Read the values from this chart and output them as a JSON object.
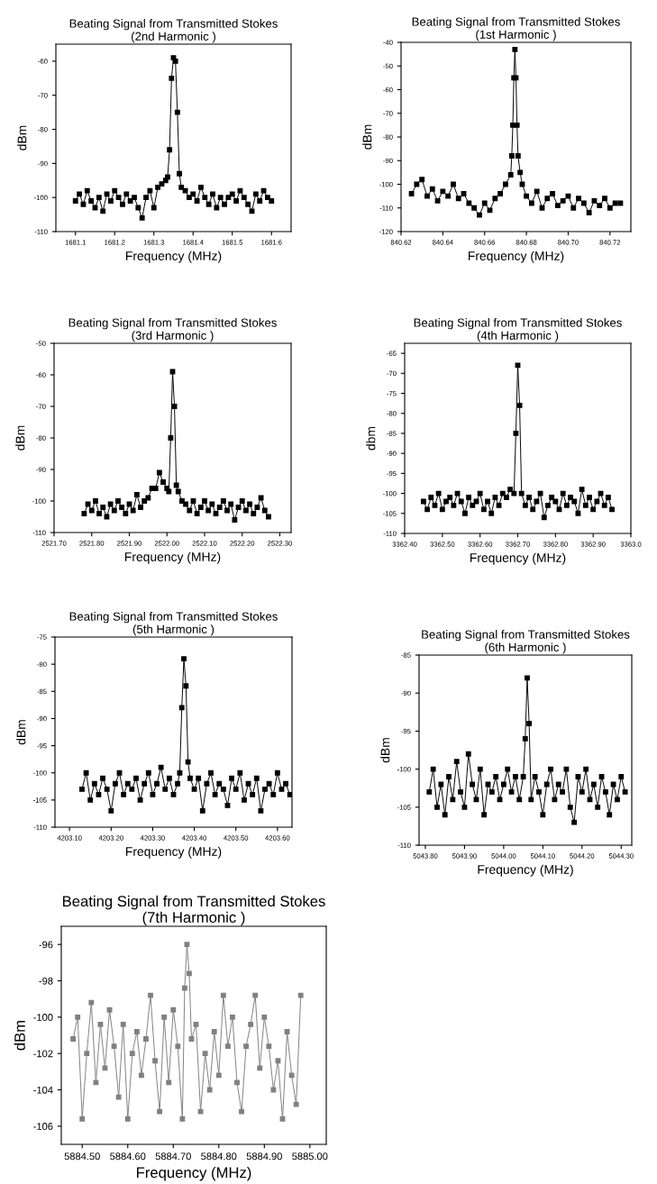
{
  "chart_data": [
    {
      "type": "line",
      "title": "Beating Signal from Transmitted Stokes",
      "subtitle": "(2nd Harmonic )",
      "xlabel": "Frequency (MHz)",
      "ylabel": "dBm",
      "marker": "square",
      "line_style": "solid",
      "xlim": [
        1681.05,
        1681.65
      ],
      "xticks": [
        1681.1,
        1681.2,
        1681.3,
        1681.4,
        1681.5,
        1681.6
      ],
      "ylim": [
        -110,
        -55
      ],
      "yticks": [
        -110,
        -100,
        -90,
        -80,
        -70,
        -60
      ],
      "series": [
        {
          "color": "#000000",
          "x": [
            1681.1,
            1681.11,
            1681.12,
            1681.13,
            1681.14,
            1681.15,
            1681.16,
            1681.17,
            1681.18,
            1681.19,
            1681.2,
            1681.21,
            1681.22,
            1681.23,
            1681.24,
            1681.25,
            1681.26,
            1681.27,
            1681.28,
            1681.29,
            1681.3,
            1681.31,
            1681.32,
            1681.33,
            1681.335,
            1681.34,
            1681.345,
            1681.35,
            1681.355,
            1681.36,
            1681.365,
            1681.37,
            1681.38,
            1681.39,
            1681.4,
            1681.41,
            1681.42,
            1681.43,
            1681.44,
            1681.45,
            1681.46,
            1681.47,
            1681.48,
            1681.49,
            1681.5,
            1681.51,
            1681.52,
            1681.53,
            1681.54,
            1681.55,
            1681.56,
            1681.57,
            1681.58,
            1681.59,
            1681.6
          ],
          "values": [
            -101,
            -99,
            -102,
            -98,
            -101,
            -103,
            -100,
            -104,
            -99,
            -101,
            -98,
            -100,
            -102,
            -99,
            -101,
            -100,
            -103,
            -106,
            -100,
            -98,
            -103,
            -97,
            -96,
            -95,
            -94,
            -86,
            -65,
            -59,
            -60,
            -75,
            -93,
            -97,
            -98,
            -100,
            -99,
            -101,
            -97,
            -100,
            -102,
            -99,
            -103,
            -100,
            -102,
            -100,
            -99,
            -101,
            -98,
            -100,
            -102,
            -104,
            -99,
            -101,
            -98,
            -100,
            -101
          ]
        }
      ]
    },
    {
      "type": "line",
      "title": "Beating Signal from Transmitted Stokes",
      "subtitle": "(1st Harmonic )",
      "xlabel": "Frequency (MHz)",
      "ylabel": "dBm",
      "marker": "square",
      "line_style": "solid",
      "xlim": [
        840.62,
        840.73
      ],
      "xticks": [
        {
          "value": 840.62,
          "label": "840.62"
        },
        {
          "value": 840.64,
          "label": "840.64"
        },
        {
          "value": 840.66,
          "label": "840.66"
        },
        {
          "value": 840.68,
          "label": "840.68"
        },
        {
          "value": 840.7,
          "label": "840.70"
        },
        {
          "value": 840.72,
          "label": "840.72"
        }
      ],
      "ylim": [
        -120,
        -40
      ],
      "yticks": [
        -120,
        -110,
        -100,
        -90,
        -80,
        -70,
        -60,
        -50,
        -40
      ],
      "series": [
        {
          "color": "#000000",
          "x": [
            840.625,
            840.6275,
            840.63,
            840.6325,
            840.635,
            840.6375,
            840.64,
            840.6425,
            840.645,
            840.6475,
            840.65,
            840.6525,
            840.655,
            840.6575,
            840.66,
            840.6625,
            840.665,
            840.6675,
            840.67,
            840.6725,
            840.673,
            840.6735,
            840.674,
            840.6745,
            840.675,
            840.6755,
            840.676,
            840.677,
            840.678,
            840.68,
            840.6825,
            840.685,
            840.6875,
            840.69,
            840.6925,
            840.695,
            840.6975,
            840.7,
            840.7025,
            840.705,
            840.7075,
            840.71,
            840.7125,
            840.715,
            840.7175,
            840.72,
            840.7225,
            840.725
          ],
          "values": [
            -104,
            -100,
            -98,
            -105,
            -102,
            -107,
            -103,
            -105,
            -100,
            -106,
            -104,
            -108,
            -110,
            -113,
            -108,
            -111,
            -106,
            -104,
            -100,
            -96,
            -88,
            -75,
            -55,
            -43,
            -55,
            -75,
            -88,
            -95,
            -100,
            -105,
            -108,
            -103,
            -110,
            -106,
            -104,
            -109,
            -107,
            -105,
            -110,
            -106,
            -108,
            -112,
            -107,
            -109,
            -106,
            -110,
            -108,
            -108
          ]
        }
      ]
    },
    {
      "type": "line",
      "title": "Beating Signal from Transmitted Stokes",
      "subtitle": "(3rd Harmonic )",
      "xlabel": "Frequency (MHz)",
      "ylabel": "dBm",
      "marker": "square",
      "line_style": "solid",
      "xlim": [
        2521.7,
        2522.33
      ],
      "xticks": [
        {
          "value": 2521.7,
          "label": "2521.70"
        },
        {
          "value": 2521.8,
          "label": "2521.80"
        },
        {
          "value": 2521.9,
          "label": "2521.90"
        },
        {
          "value": 2522.0,
          "label": "2522.00"
        },
        {
          "value": 2522.1,
          "label": "2522.10"
        },
        {
          "value": 2522.2,
          "label": "2522.20"
        },
        {
          "value": 2522.3,
          "label": "2522.30"
        }
      ],
      "ylim": [
        -110,
        -50
      ],
      "yticks": [
        -110,
        -100,
        -90,
        -80,
        -70,
        -60,
        -50
      ],
      "series": [
        {
          "color": "#000000",
          "x": [
            2521.78,
            2521.79,
            2521.8,
            2521.81,
            2521.82,
            2521.83,
            2521.84,
            2521.85,
            2521.86,
            2521.87,
            2521.88,
            2521.89,
            2521.9,
            2521.91,
            2521.92,
            2521.93,
            2521.94,
            2521.95,
            2521.96,
            2521.97,
            2521.98,
            2521.99,
            2522.0,
            2522.005,
            2522.01,
            2522.015,
            2522.02,
            2522.025,
            2522.03,
            2522.04,
            2522.05,
            2522.06,
            2522.07,
            2522.08,
            2522.09,
            2522.1,
            2522.11,
            2522.12,
            2522.13,
            2522.14,
            2522.15,
            2522.16,
            2522.17,
            2522.18,
            2522.19,
            2522.2,
            2522.21,
            2522.22,
            2522.23,
            2522.24,
            2522.25,
            2522.26,
            2522.27
          ],
          "values": [
            -104,
            -101,
            -103,
            -100,
            -104,
            -102,
            -105,
            -101,
            -103,
            -100,
            -102,
            -104,
            -101,
            -103,
            -98,
            -102,
            -100,
            -99,
            -96,
            -96,
            -91,
            -94,
            -96,
            -97,
            -80,
            -59,
            -70,
            -95,
            -97,
            -100,
            -101,
            -103,
            -100,
            -104,
            -102,
            -100,
            -103,
            -101,
            -104,
            -102,
            -100,
            -103,
            -101,
            -106,
            -102,
            -100,
            -103,
            -101,
            -104,
            -102,
            -99,
            -103,
            -105
          ]
        }
      ]
    },
    {
      "type": "line",
      "title": "Beating Signal from Transmitted Stokes",
      "subtitle": "(4th Harmonic )",
      "xlabel": "Frequency (MHz)",
      "ylabel": "dbm",
      "marker": "square",
      "line_style": "solid",
      "xlim": [
        3362.4,
        3363.0
      ],
      "xticks": [
        {
          "value": 3362.4,
          "label": "3362.40"
        },
        {
          "value": 3362.5,
          "label": "3362.50"
        },
        {
          "value": 3362.6,
          "label": "3362.60"
        },
        {
          "value": 3362.7,
          "label": "3362.70"
        },
        {
          "value": 3362.8,
          "label": "3362.80"
        },
        {
          "value": 3362.9,
          "label": "3362.90"
        },
        {
          "value": 3363.0,
          "label": "3363.0"
        }
      ],
      "ylim": [
        -110,
        -62.5
      ],
      "yticks": [
        -110,
        -105,
        -100,
        -95,
        -90,
        -85,
        -80,
        -75,
        -70,
        -65
      ],
      "series": [
        {
          "color": "#000000",
          "x": [
            3362.45,
            3362.46,
            3362.47,
            3362.48,
            3362.49,
            3362.5,
            3362.51,
            3362.52,
            3362.53,
            3362.54,
            3362.55,
            3362.56,
            3362.57,
            3362.58,
            3362.59,
            3362.6,
            3362.61,
            3362.62,
            3362.63,
            3362.64,
            3362.65,
            3362.66,
            3362.67,
            3362.68,
            3362.69,
            3362.695,
            3362.7,
            3362.705,
            3362.71,
            3362.72,
            3362.73,
            3362.74,
            3362.75,
            3362.76,
            3362.77,
            3362.78,
            3362.79,
            3362.8,
            3362.81,
            3362.82,
            3362.83,
            3362.84,
            3362.85,
            3362.86,
            3362.87,
            3362.88,
            3362.89,
            3362.9,
            3362.91,
            3362.92,
            3362.93,
            3362.94,
            3362.95
          ],
          "values": [
            -102,
            -104,
            -101,
            -103,
            -100,
            -104,
            -102,
            -101,
            -103,
            -100,
            -102,
            -105,
            -101,
            -103,
            -102,
            -100,
            -104,
            -102,
            -105,
            -101,
            -103,
            -100,
            -101,
            -99,
            -100,
            -85,
            -68,
            -78,
            -100,
            -103,
            -101,
            -104,
            -102,
            -100,
            -106,
            -103,
            -101,
            -102,
            -104,
            -100,
            -103,
            -101,
            -102,
            -105,
            -99,
            -103,
            -101,
            -104,
            -102,
            -100,
            -103,
            -101,
            -104
          ]
        }
      ]
    },
    {
      "type": "line",
      "title": "Beating Signal from Transmitted Stokes",
      "subtitle": "(5th Harmonic )",
      "xlabel": "Frequency (MHz)",
      "ylabel": "dBm",
      "marker": "square",
      "line_style": "solid",
      "xlim": [
        4203.065,
        4203.635
      ],
      "xticks": [
        {
          "value": 4203.1,
          "label": "4203.10"
        },
        {
          "value": 4203.2,
          "label": "4203.20"
        },
        {
          "value": 4203.3,
          "label": "4203.30"
        },
        {
          "value": 4203.4,
          "label": "4203.40"
        },
        {
          "value": 4203.5,
          "label": "4203.50"
        },
        {
          "value": 4203.6,
          "label": "4203.60"
        }
      ],
      "ylim": [
        -110,
        -75
      ],
      "yticks": [
        -110,
        -105,
        -100,
        -95,
        -90,
        -85,
        -80,
        -75
      ],
      "series": [
        {
          "color": "#000000",
          "x": [
            4203.13,
            4203.14,
            4203.15,
            4203.16,
            4203.17,
            4203.18,
            4203.19,
            4203.2,
            4203.21,
            4203.22,
            4203.23,
            4203.24,
            4203.25,
            4203.26,
            4203.27,
            4203.28,
            4203.29,
            4203.3,
            4203.31,
            4203.32,
            4203.33,
            4203.34,
            4203.35,
            4203.36,
            4203.365,
            4203.37,
            4203.375,
            4203.38,
            4203.385,
            4203.39,
            4203.4,
            4203.41,
            4203.42,
            4203.43,
            4203.44,
            4203.45,
            4203.46,
            4203.47,
            4203.48,
            4203.49,
            4203.5,
            4203.51,
            4203.52,
            4203.53,
            4203.54,
            4203.55,
            4203.56,
            4203.57,
            4203.58,
            4203.59,
            4203.6,
            4203.61,
            4203.62,
            4203.63
          ],
          "values": [
            -103,
            -100,
            -105,
            -102,
            -104,
            -101,
            -103,
            -107,
            -102,
            -100,
            -104,
            -102,
            -103,
            -101,
            -105,
            -102,
            -100,
            -104,
            -102,
            -99,
            -103,
            -101,
            -104,
            -102,
            -100,
            -88,
            -79,
            -84,
            -98,
            -101,
            -103,
            -101,
            -107,
            -102,
            -100,
            -104,
            -102,
            -103,
            -106,
            -101,
            -103,
            -100,
            -105,
            -102,
            -104,
            -101,
            -107,
            -103,
            -102,
            -104,
            -100,
            -103,
            -102,
            -104
          ]
        }
      ]
    },
    {
      "type": "line",
      "title": "Beating Signal from Transmitted Stokes",
      "subtitle": "(6th Harmonic )",
      "xlabel": "Frequency (MHz)",
      "ylabel": "dBm",
      "marker": "square",
      "line_style": "solid",
      "xlim": [
        5043.784,
        5044.327
      ],
      "xticks": [
        {
          "value": 5043.8,
          "label": "5043.80"
        },
        {
          "value": 5043.9,
          "label": "5043.90"
        },
        {
          "value": 5044.0,
          "label": "5044.00"
        },
        {
          "value": 5044.1,
          "label": "5044.10"
        },
        {
          "value": 5044.2,
          "label": "5044.20"
        },
        {
          "value": 5044.3,
          "label": "5044.30"
        }
      ],
      "ylim": [
        -110,
        -85
      ],
      "yticks": [
        -110,
        -105,
        -100,
        -95,
        -90,
        -85
      ],
      "series": [
        {
          "color": "#000000",
          "x": [
            5043.81,
            5043.82,
            5043.83,
            5043.84,
            5043.85,
            5043.86,
            5043.87,
            5043.88,
            5043.89,
            5043.9,
            5043.91,
            5043.92,
            5043.93,
            5043.94,
            5043.95,
            5043.96,
            5043.97,
            5043.98,
            5043.99,
            5044.0,
            5044.01,
            5044.02,
            5044.03,
            5044.04,
            5044.05,
            5044.055,
            5044.06,
            5044.065,
            5044.07,
            5044.08,
            5044.09,
            5044.1,
            5044.11,
            5044.12,
            5044.13,
            5044.14,
            5044.15,
            5044.16,
            5044.17,
            5044.18,
            5044.19,
            5044.2,
            5044.21,
            5044.22,
            5044.23,
            5044.24,
            5044.25,
            5044.26,
            5044.27,
            5044.28,
            5044.29,
            5044.3,
            5044.31
          ],
          "values": [
            -103,
            -100,
            -105,
            -102,
            -106,
            -101,
            -104,
            -99,
            -103,
            -105,
            -98,
            -102,
            -104,
            -100,
            -106,
            -102,
            -103,
            -101,
            -104,
            -102,
            -100,
            -103,
            -101,
            -104,
            -101,
            -96,
            -88,
            -94,
            -104,
            -101,
            -103,
            -106,
            -102,
            -100,
            -104,
            -102,
            -103,
            -100,
            -105,
            -107,
            -101,
            -103,
            -100,
            -104,
            -102,
            -105,
            -101,
            -103,
            -106,
            -102,
            -104,
            -101,
            -103
          ]
        }
      ]
    },
    {
      "type": "line",
      "title": "Beating Signal from Transmitted Stokes",
      "subtitle": "(7th Harmonic )",
      "xlabel": "Frequency (MHz)",
      "ylabel": "dBm",
      "marker": "square",
      "line_style": "solid",
      "xlim": [
        5884.454,
        5885.036
      ],
      "xticks": [
        {
          "value": 5884.5,
          "label": "5884.50"
        },
        {
          "value": 5884.6,
          "label": "5884.60"
        },
        {
          "value": 5884.7,
          "label": "5884.70"
        },
        {
          "value": 5884.8,
          "label": "5884.80"
        },
        {
          "value": 5884.9,
          "label": "5884.90"
        },
        {
          "value": 5885.0,
          "label": "5885.00"
        }
      ],
      "ylim": [
        -107,
        -95
      ],
      "yticks": [
        -106,
        -104,
        -102,
        -100,
        -98,
        -96
      ],
      "series": [
        {
          "color": "#808080",
          "x": [
            5884.48,
            5884.49,
            5884.5,
            5884.51,
            5884.52,
            5884.53,
            5884.54,
            5884.55,
            5884.56,
            5884.57,
            5884.58,
            5884.59,
            5884.6,
            5884.61,
            5884.62,
            5884.63,
            5884.64,
            5884.65,
            5884.66,
            5884.67,
            5884.68,
            5884.69,
            5884.7,
            5884.71,
            5884.72,
            5884.725,
            5884.73,
            5884.735,
            5884.74,
            5884.75,
            5884.76,
            5884.77,
            5884.78,
            5884.79,
            5884.8,
            5884.81,
            5884.82,
            5884.83,
            5884.84,
            5884.85,
            5884.86,
            5884.87,
            5884.88,
            5884.89,
            5884.9,
            5884.91,
            5884.92,
            5884.93,
            5884.94,
            5884.95,
            5884.96,
            5884.97,
            5884.98
          ],
          "values": [
            -101.2,
            -100,
            -105.6,
            -102,
            -99.2,
            -103.6,
            -100.4,
            -102.8,
            -99.6,
            -101.6,
            -104.4,
            -100.4,
            -105.6,
            -102,
            -100.8,
            -103.2,
            -101.2,
            -98.8,
            -102.4,
            -105.2,
            -100,
            -103.6,
            -99.6,
            -101.6,
            -105.6,
            -98.4,
            -96,
            -97.6,
            -101.2,
            -100.4,
            -105.2,
            -102,
            -104,
            -100.8,
            -103.2,
            -98.8,
            -101.6,
            -100,
            -103.6,
            -105.2,
            -101.6,
            -100.4,
            -98.8,
            -102.8,
            -100,
            -101.6,
            -104,
            -102.4,
            -105.6,
            -100.8,
            -103.2,
            -104.8,
            -98.8
          ]
        }
      ]
    }
  ]
}
